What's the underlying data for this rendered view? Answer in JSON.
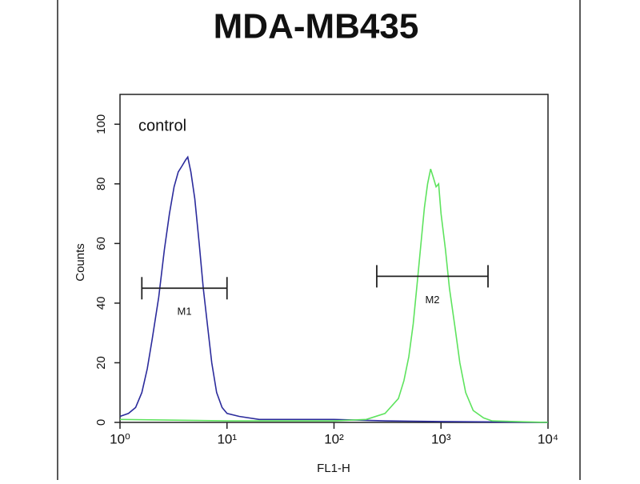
{
  "chart_data": {
    "type": "line",
    "title": "MDA-MB435",
    "x_label": "FL1-H",
    "y_label": "Counts",
    "annotation": "control",
    "xscale": "log",
    "xlim": [
      1,
      10000
    ],
    "ylim": [
      0,
      110
    ],
    "xticks": [
      {
        "value": 1,
        "label": "10⁰"
      },
      {
        "value": 10,
        "label": "10¹"
      },
      {
        "value": 100,
        "label": "10²"
      },
      {
        "value": 1000,
        "label": "10³"
      },
      {
        "value": 10000,
        "label": "10⁴"
      }
    ],
    "yticks": [
      0,
      20,
      40,
      60,
      80,
      100
    ],
    "grid": false,
    "series": [
      {
        "color": "#2b2b9c",
        "x": [
          1.0,
          1.2,
          1.4,
          1.6,
          1.8,
          2.0,
          2.3,
          2.6,
          2.9,
          3.2,
          3.5,
          3.8,
          4.1,
          4.3,
          4.6,
          5.0,
          5.5,
          6.0,
          6.6,
          7.2,
          8.0,
          9.0,
          10,
          13,
          20,
          50,
          100,
          300,
          1000,
          10000
        ],
        "values": [
          2,
          3,
          5,
          10,
          18,
          28,
          42,
          58,
          70,
          79,
          84,
          86,
          88,
          89,
          84,
          75,
          60,
          45,
          32,
          20,
          10,
          5,
          3,
          2,
          1,
          1,
          1,
          0.5,
          0.3,
          0
        ]
      },
      {
        "color": "#5ee35e",
        "x": [
          1,
          10,
          100,
          200,
          300,
          400,
          450,
          500,
          550,
          600,
          650,
          700,
          750,
          800,
          850,
          900,
          950,
          1000,
          1100,
          1200,
          1350,
          1500,
          1700,
          2000,
          2500,
          3000,
          10000
        ],
        "values": [
          1,
          0.5,
          0.5,
          1,
          3,
          8,
          14,
          22,
          33,
          47,
          60,
          72,
          80,
          85,
          82,
          79,
          80,
          70,
          58,
          45,
          32,
          20,
          10,
          4,
          1.5,
          0.5,
          0
        ]
      }
    ],
    "markers": [
      {
        "label": "M1",
        "x": [
          1.6,
          10
        ],
        "y": 45
      },
      {
        "label": "M2",
        "x": [
          251,
          2750
        ],
        "y": 49
      }
    ]
  }
}
